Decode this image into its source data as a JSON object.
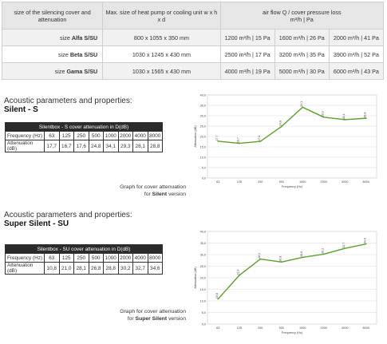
{
  "top_table": {
    "header": {
      "col1": "size of the silencing cover and attenuation",
      "col2": "Max. size of heat pump or cooling unit w x h x d",
      "col3_line1": "air flow Q / cover pressure loss",
      "col3_line2": "m³/h | Pa"
    },
    "rows": [
      {
        "label_prefix": "size ",
        "label_bold": "Alfa S/SU",
        "size": "800 x 1055 x 350 mm",
        "flows": [
          "1200 m³/h | 15 Pa",
          "1600 m³/h | 26 Pa",
          "2000 m³/h | 41 Pa"
        ]
      },
      {
        "label_prefix": "size ",
        "label_bold": "Beta S/SU",
        "size": "1030 x 1245 x 430 mm",
        "flows": [
          "2500 m³/h | 17 Pa",
          "3200 m³/h | 35 Pa",
          "3900 m³/h | 52 Pa"
        ]
      },
      {
        "label_prefix": "size ",
        "label_bold": "Gama S/SU",
        "size": "1030 x 1565 x 430 mm",
        "flows": [
          "4000 m³/h | 19 Pa",
          "5000 m³/h | 30 Pa",
          "6000 m³/h | 43 Pa"
        ]
      }
    ]
  },
  "silent": {
    "heading_line1": "Acoustic parameters and properties:",
    "heading_line2": "Silent - S",
    "table_title": "Silentbox - S cover attenuation in D(dB)",
    "freq_label": "Frequency (Hz)",
    "att_label": "Attenuation (dB)",
    "freqs": [
      "63",
      "125",
      "250",
      "500",
      "1000",
      "2000",
      "4000",
      "8000"
    ],
    "atts": [
      "17,7",
      "16,7",
      "17,6",
      "24,8",
      "34,1",
      "29,3",
      "28,1",
      "28,8"
    ],
    "caption_line1": "Graph for cover attenuation",
    "caption_prefix": "for ",
    "caption_bold": "Silent",
    "caption_suffix": " version"
  },
  "super_silent": {
    "heading_line1": "Acoustic parameters and properties:",
    "heading_line2": "Super Silent - SU",
    "table_title": "Silentbox - SU cover attenuation in D(dB)",
    "freq_label": "Frequency (Hz)",
    "att_label": "Attenuation (dB)",
    "freqs": [
      "63",
      "125",
      "250",
      "500",
      "1000",
      "2000",
      "4000",
      "8000"
    ],
    "atts": [
      "10,8",
      "21,0",
      "28,1",
      "26,8",
      "28,8",
      "30,2",
      "32,7",
      "34,6"
    ],
    "caption_line1": "Graph for cover attenuation",
    "caption_prefix": "for ",
    "caption_bold": "Super Silent",
    "caption_suffix": " version"
  },
  "chart_data": [
    {
      "type": "line",
      "categories": [
        "63",
        "125",
        "250",
        "500",
        "1000",
        "2000",
        "4000",
        "8000"
      ],
      "series": [
        {
          "values": [
            17.7,
            16.7,
            17.6,
            24.8,
            34.1,
            29.3,
            28.1,
            28.8
          ]
        }
      ],
      "data_labels": [
        "17,7",
        "16,7",
        "17,6",
        "24,8",
        "34,1",
        "29,3",
        "28,1",
        "28,8"
      ],
      "xlabel": "Frequency (Hz)",
      "ylabel": "Attenuation (dB)",
      "ylim": [
        0,
        40
      ],
      "yticks": [
        "0,0",
        "5,0",
        "10,0",
        "15,0",
        "20,0",
        "25,0",
        "30,0",
        "35,0",
        "40,0"
      ],
      "grid": true,
      "color": "#5aa02c"
    },
    {
      "type": "line",
      "categories": [
        "63",
        "125",
        "250",
        "500",
        "1000",
        "2000",
        "4000",
        "8000"
      ],
      "series": [
        {
          "values": [
            10.8,
            21.0,
            28.1,
            26.8,
            28.8,
            30.2,
            32.7,
            34.6
          ]
        }
      ],
      "data_labels": [
        "10,8",
        "21,0",
        "28,1",
        "26,8",
        "28,8",
        "30,2",
        "32,7",
        "34,6"
      ],
      "xlabel": "Frequency (Hz)",
      "ylabel": "Attenuation (dB)",
      "ylim": [
        0,
        40
      ],
      "yticks": [
        "0,0",
        "5,0",
        "10,0",
        "15,0",
        "20,0",
        "25,0",
        "30,0",
        "35,0",
        "40,0"
      ],
      "grid": true,
      "color": "#5aa02c"
    }
  ]
}
